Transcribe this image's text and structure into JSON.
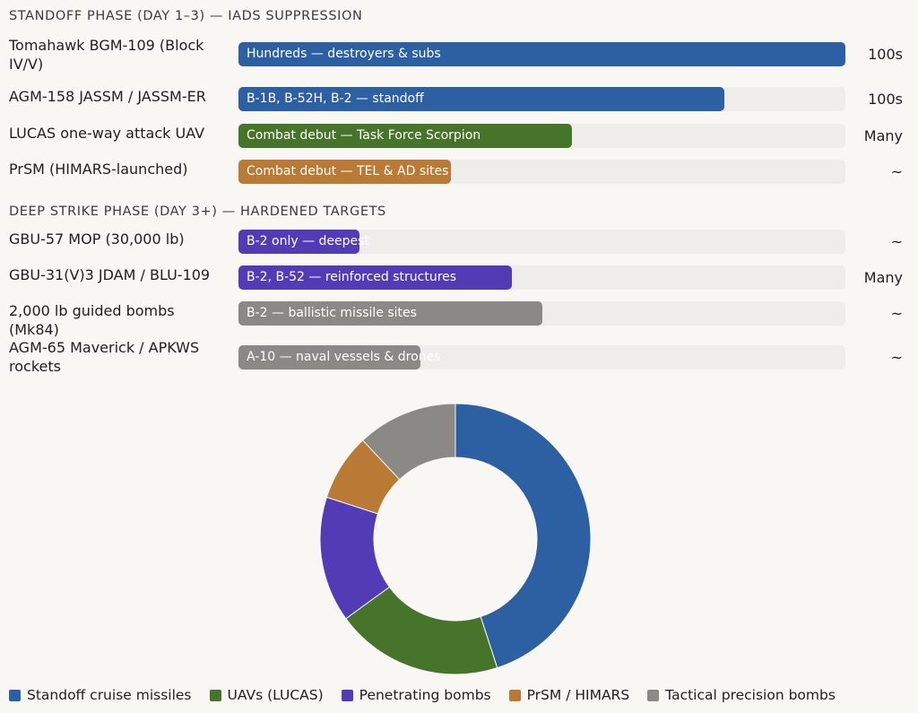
{
  "sections": [
    {
      "title": "STANDOFF PHASE (DAY 1–3) — IADS SUPPRESSION",
      "rows": [
        {
          "label": "Tomahawk BGM-109 (Block IV/V)",
          "bar_text": "Hundreds — destroyers & subs",
          "fraction": 1.0,
          "color": "#2d5fa3",
          "value": "100s"
        },
        {
          "label": "AGM-158 JASSM / JASSM-ER",
          "bar_text": "B-1B, B-52H, B-2 — standoff",
          "fraction": 0.8,
          "color": "#2d5fa3",
          "value": "100s"
        },
        {
          "label": "LUCAS one-way attack UAV",
          "bar_text": "Combat debut — Task Force Scorpion",
          "fraction": 0.55,
          "color": "#46742a",
          "value": "Many"
        },
        {
          "label": "PrSM (HIMARS-launched)",
          "bar_text": "Combat debut — TEL & AD sites",
          "fraction": 0.35,
          "color": "#b87a34",
          "value": "~"
        }
      ]
    },
    {
      "title": "DEEP STRIKE PHASE (DAY 3+) — HARDENED TARGETS",
      "rows": [
        {
          "label": "GBU-57 MOP (30,000 lb)",
          "bar_text": "B-2 only — deepest",
          "fraction": 0.2,
          "color": "#523cb6",
          "value": "~"
        },
        {
          "label": "GBU-31(V)3 JDAM / BLU-109",
          "bar_text": "B-2, B-52 — reinforced structures",
          "fraction": 0.45,
          "color": "#523cb6",
          "value": "Many"
        },
        {
          "label": "2,000 lb guided bombs (Mk84)",
          "bar_text": "B-2 — ballistic missile sites",
          "fraction": 0.5,
          "color": "#8a8985",
          "value": "~"
        },
        {
          "label": "AGM-65 Maverick / APKWS rockets",
          "bar_text": "A-10 — naval vessels & drones",
          "fraction": 0.3,
          "color": "#8a8985",
          "value": "~"
        }
      ]
    }
  ],
  "chart_data": {
    "type": "pie",
    "donut": true,
    "categories": [
      "Standoff cruise missiles",
      "UAVs (LUCAS)",
      "Penetrating bombs",
      "PrSM / HIMARS",
      "Tactical precision bombs"
    ],
    "values": [
      45,
      20,
      15,
      8,
      12
    ],
    "colors": [
      "#2d5fa3",
      "#46742a",
      "#523cb6",
      "#b87a34",
      "#8a8985"
    ],
    "legend_position": "bottom"
  }
}
